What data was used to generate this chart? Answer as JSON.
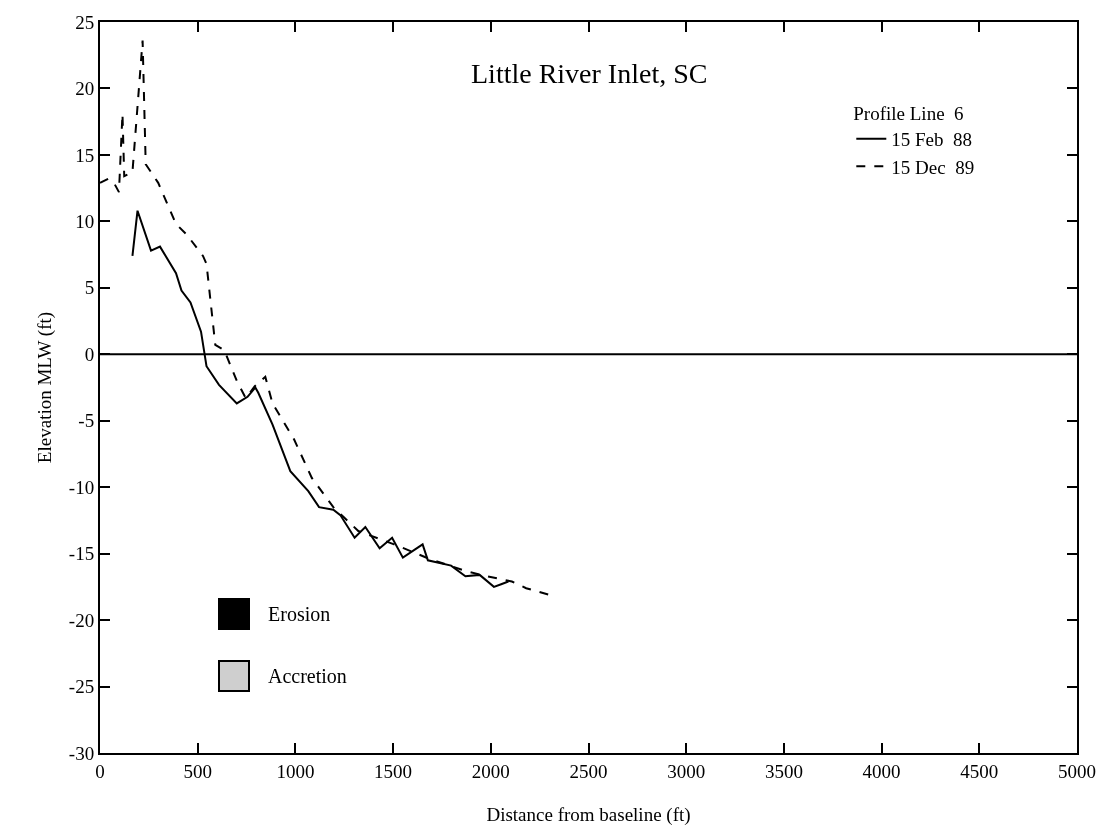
{
  "chart_data": {
    "type": "line",
    "title": "Little River Inlet, SC",
    "xlabel": "Distance from baseline (ft)",
    "ylabel": "Elevation MLW (ft)",
    "legend_title": "Profile Line  6",
    "legend": "top right",
    "grid": false,
    "marker": "none",
    "xlim": [
      0,
      5000
    ],
    "xticks": [
      0,
      500,
      1000,
      1500,
      2000,
      2500,
      3000,
      3500,
      4000,
      4500,
      5000
    ],
    "ylim": [
      -30,
      25
    ],
    "yticks": [
      -30,
      -25,
      -20,
      -15,
      -10,
      -5,
      0,
      5,
      10,
      15,
      20,
      25
    ],
    "ref_lines": [
      {
        "axis": "y",
        "value": 0,
        "color": "#000000",
        "line_style": "solid"
      }
    ],
    "annotations": [
      "Erosion",
      "Accretion"
    ],
    "series": [
      {
        "name": "15 Feb  88",
        "color": "#000000",
        "line_style": "solid",
        "x": [
          166,
          192,
          261,
          307,
          389,
          417,
          463,
          517,
          545,
          609,
          700,
          755,
          795,
          810,
          883,
          974,
          1066,
          1121,
          1194,
          1230,
          1303,
          1358,
          1431,
          1495,
          1550,
          1651,
          1678,
          1797,
          1870,
          1943,
          2016,
          2053,
          2090
        ],
        "values": [
          7.4,
          10.8,
          7.8,
          8.1,
          6.1,
          4.8,
          3.9,
          1.7,
          -0.9,
          -2.3,
          -3.7,
          -3.2,
          -2.5,
          -2.9,
          -5.3,
          -8.8,
          -10.3,
          -11.5,
          -11.7,
          -12.1,
          -13.8,
          -13,
          -14.6,
          -13.8,
          -15.3,
          -14.3,
          -15.5,
          -15.9,
          -16.7,
          -16.6,
          -17.5,
          -17.3,
          -17.1
        ]
      },
      {
        "name": "15 Dec  89",
        "color": "#000000",
        "line_style": "dashed",
        "x": [
          0,
          42,
          75,
          97,
          115,
          124,
          166,
          218,
          234,
          298,
          389,
          444,
          527,
          545,
          590,
          636,
          700,
          746,
          792,
          846,
          883,
          993,
          1084,
          1194,
          1322,
          1505,
          1687,
          1870,
          1980,
          2108,
          2181,
          2300
        ],
        "values": [
          12.9,
          13.2,
          12.8,
          12.2,
          18.1,
          13.4,
          13.7,
          23.6,
          14.3,
          12.9,
          9.8,
          9,
          7.4,
          6.8,
          0.7,
          0.3,
          -2,
          -3.3,
          -2.4,
          -1.7,
          -3.7,
          -6.4,
          -9.3,
          -11.5,
          -13.3,
          -14.3,
          -15.4,
          -16.3,
          -16.7,
          -17.1,
          -17.6,
          -18.1
        ]
      }
    ]
  }
}
